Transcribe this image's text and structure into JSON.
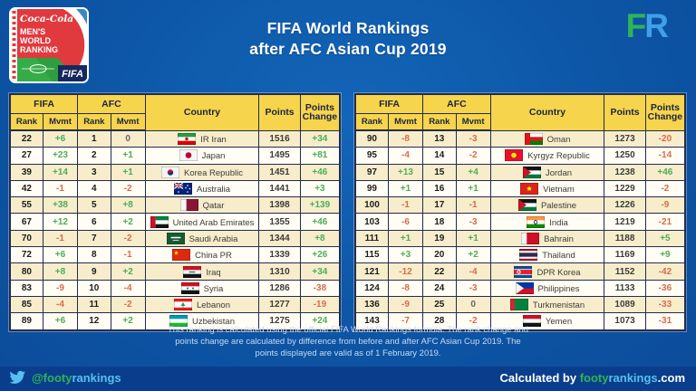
{
  "header": {
    "badge": {
      "sponsor": "Coca-Cola",
      "line1": "MEN'S",
      "line2": "WORLD",
      "line3": "RANKING",
      "fifa": "FIFA"
    },
    "title_line1": "FIFA World Rankings",
    "title_line2": "after AFC Asian Cup 2019",
    "fr_f": "F",
    "fr_r": "R"
  },
  "table_headers": {
    "fifa": "FIFA",
    "afc": "AFC",
    "rank": "Rank",
    "mvmt": "Mvmt",
    "country": "Country",
    "points": "Points",
    "points_change": "Points Change"
  },
  "colors": {
    "background_blue": "#0D55A5",
    "bottom_bar_blue": "#0A3E8C",
    "header_yellow": "#F6D44C",
    "positive_green": "#4CAD5B",
    "negative_red": "#D96A50",
    "zero_gray": "#666666",
    "brand_green": "#2FB457",
    "brand_light_blue": "#55C1F0"
  },
  "tables": [
    {
      "rows": [
        {
          "fifa_rank": "22",
          "fifa_mvmt": "+6",
          "afc_rank": "1",
          "afc_mvmt": "0",
          "country": "IR Iran",
          "points": "1516",
          "change": "+34",
          "flag": {
            "t": "h",
            "s": [
              [
                "#239F40",
                1
              ],
              [
                "#FFFFFF",
                1
              ],
              [
                "#DA0000",
                1
              ]
            ],
            "o": [
              {
                "sh": "disc",
                "c": "#DA0000",
                "x": 10,
                "y": 6.5,
                "r": 1.7
              }
            ]
          }
        },
        {
          "fifa_rank": "27",
          "fifa_mvmt": "+23",
          "afc_rank": "2",
          "afc_mvmt": "+1",
          "country": "Japan",
          "points": "1495",
          "change": "+81",
          "flag": {
            "t": "h",
            "s": [
              [
                "#F5F5F5",
                1
              ]
            ],
            "o": [
              {
                "sh": "disc",
                "c": "#BC002D",
                "x": 10,
                "y": 6.5,
                "r": 3.3
              }
            ]
          }
        },
        {
          "fifa_rank": "39",
          "fifa_mvmt": "+14",
          "afc_rank": "3",
          "afc_mvmt": "+1",
          "country": "Korea Republic",
          "points": "1451",
          "change": "+46",
          "flag": {
            "t": "h",
            "s": [
              [
                "#F5F5F5",
                1
              ]
            ],
            "o": [
              {
                "sh": "taegeuk",
                "x": 10,
                "y": 6.5,
                "r": 3.2
              }
            ]
          }
        },
        {
          "fifa_rank": "42",
          "fifa_mvmt": "-1",
          "afc_rank": "4",
          "afc_mvmt": "-2",
          "country": "Australia",
          "points": "1441",
          "change": "+3",
          "flag": {
            "t": "h",
            "s": [
              [
                "#00247D",
                1
              ]
            ],
            "o": [
              {
                "sh": "jack"
              },
              {
                "sh": "dots",
                "c": "#FFFFFF",
                "r": 0.8,
                "p": [
                  [
                    15,
                    3
                  ],
                  [
                    17.5,
                    6.5
                  ],
                  [
                    15,
                    10
                  ],
                  [
                    13,
                    5.5
                  ],
                  [
                    5,
                    10
                  ]
                ]
              }
            ]
          }
        },
        {
          "fifa_rank": "55",
          "fifa_mvmt": "+38",
          "afc_rank": "5",
          "afc_mvmt": "+8",
          "country": "Qatar",
          "points": "1398",
          "change": "+139",
          "flag": {
            "t": "v",
            "s": [
              [
                "#F5F5F5",
                1
              ],
              [
                "#8A1538",
                2
              ]
            ]
          }
        },
        {
          "fifa_rank": "67",
          "fifa_mvmt": "+12",
          "afc_rank": "6",
          "afc_mvmt": "+2",
          "country": "United Arab Emirates",
          "points": "1355",
          "change": "+46",
          "flag": {
            "t": "bandh",
            "band": [
              "#CE1126",
              0.28
            ],
            "s": [
              [
                "#00843D",
                1
              ],
              [
                "#FFFFFF",
                1
              ],
              [
                "#141414",
                1
              ]
            ]
          }
        },
        {
          "fifa_rank": "70",
          "fifa_mvmt": "-1",
          "afc_rank": "7",
          "afc_mvmt": "-2",
          "country": "Saudi Arabia",
          "points": "1344",
          "change": "+8",
          "flag": {
            "t": "h",
            "s": [
              [
                "#165B33",
                1
              ]
            ],
            "o": [
              {
                "sh": "bar",
                "c": "#FFFFFF",
                "x": 10,
                "y": 5.5,
                "w": 11,
                "h": 1.5
              },
              {
                "sh": "bar",
                "c": "#FFFFFF",
                "x": 10,
                "y": 8.5,
                "w": 7,
                "h": 0.8
              }
            ]
          }
        },
        {
          "fifa_rank": "72",
          "fifa_mvmt": "+6",
          "afc_rank": "8",
          "afc_mvmt": "-1",
          "country": "China PR",
          "points": "1339",
          "change": "+26",
          "flag": {
            "t": "h",
            "s": [
              [
                "#DE2910",
                1
              ]
            ],
            "o": [
              {
                "sh": "star",
                "c": "#FFDE00",
                "x": 4.5,
                "y": 4.5,
                "r": 2.6
              }
            ]
          }
        },
        {
          "fifa_rank": "80",
          "fifa_mvmt": "+8",
          "afc_rank": "9",
          "afc_mvmt": "+2",
          "country": "Iraq",
          "points": "1310",
          "change": "+34",
          "flag": {
            "t": "h",
            "s": [
              [
                "#CE1126",
                1
              ],
              [
                "#FFFFFF",
                1
              ],
              [
                "#141414",
                1
              ]
            ],
            "o": [
              {
                "sh": "bar",
                "c": "#007A3D",
                "x": 10,
                "y": 6.5,
                "w": 7,
                "h": 1.2
              }
            ]
          }
        },
        {
          "fifa_rank": "83",
          "fifa_mvmt": "-9",
          "afc_rank": "10",
          "afc_mvmt": "-4",
          "country": "Syria",
          "points": "1286",
          "change": "-38",
          "flag": {
            "t": "h",
            "s": [
              [
                "#CE1126",
                1
              ],
              [
                "#FFFFFF",
                1
              ],
              [
                "#141414",
                1
              ]
            ],
            "o": [
              {
                "sh": "dots",
                "c": "#007A3D",
                "r": 1,
                "p": [
                  [
                    7,
                    6.5
                  ],
                  [
                    13,
                    6.5
                  ]
                ]
              }
            ]
          }
        },
        {
          "fifa_rank": "85",
          "fifa_mvmt": "-4",
          "afc_rank": "11",
          "afc_mvmt": "-2",
          "country": "Lebanon",
          "points": "1277",
          "change": "-19",
          "flag": {
            "t": "h",
            "s": [
              [
                "#ED1C24",
                1
              ],
              [
                "#FFFFFF",
                2
              ],
              [
                "#ED1C24",
                1
              ]
            ],
            "o": [
              {
                "sh": "tree",
                "c": "#00A651",
                "x": 10,
                "y": 6.5
              }
            ]
          }
        },
        {
          "fifa_rank": "89",
          "fifa_mvmt": "+6",
          "afc_rank": "12",
          "afc_mvmt": "+2",
          "country": "Uzbekistan",
          "points": "1275",
          "change": "+24",
          "flag": {
            "t": "h",
            "s": [
              [
                "#0099B5",
                1
              ],
              [
                "#FFFFFF",
                1
              ],
              [
                "#1EB53A",
                1
              ]
            ]
          }
        }
      ]
    },
    {
      "rows": [
        {
          "fifa_rank": "90",
          "fifa_mvmt": "-8",
          "afc_rank": "13",
          "afc_mvmt": "-3",
          "country": "Oman",
          "points": "1273",
          "change": "-20",
          "flag": {
            "t": "bandh",
            "band": [
              "#DB161B",
              0.3
            ],
            "s": [
              [
                "#FFFFFF",
                1
              ],
              [
                "#DB161B",
                1
              ],
              [
                "#008000",
                1
              ]
            ]
          }
        },
        {
          "fifa_rank": "95",
          "fifa_mvmt": "-4",
          "afc_rank": "14",
          "afc_mvmt": "-2",
          "country": "Kyrgyz Republic",
          "points": "1250",
          "change": "-14",
          "flag": {
            "t": "h",
            "s": [
              [
                "#E8112D",
                1
              ]
            ],
            "o": [
              {
                "sh": "disc",
                "c": "#FFEF00",
                "x": 10,
                "y": 6.5,
                "r": 2.8
              }
            ]
          }
        },
        {
          "fifa_rank": "97",
          "fifa_mvmt": "+13",
          "afc_rank": "15",
          "afc_mvmt": "+4",
          "country": "Jordan",
          "points": "1238",
          "change": "+46",
          "flag": {
            "t": "tri",
            "s": [
              [
                "#141414",
                1
              ],
              [
                "#FFFFFF",
                1
              ],
              [
                "#007A3D",
                1
              ]
            ],
            "tri": "#CE1126"
          }
        },
        {
          "fifa_rank": "99",
          "fifa_mvmt": "+1",
          "afc_rank": "16",
          "afc_mvmt": "+1",
          "country": "Vietnam",
          "points": "1229",
          "change": "-2",
          "flag": {
            "t": "h",
            "s": [
              [
                "#DA251D",
                1
              ]
            ],
            "o": [
              {
                "sh": "star",
                "c": "#FFFF00",
                "x": 10,
                "y": 6.5,
                "r": 3.1
              }
            ]
          }
        },
        {
          "fifa_rank": "100",
          "fifa_mvmt": "-1",
          "afc_rank": "17",
          "afc_mvmt": "-1",
          "country": "Palestine",
          "points": "1226",
          "change": "-9",
          "flag": {
            "t": "tri",
            "s": [
              [
                "#141414",
                1
              ],
              [
                "#FFFFFF",
                1
              ],
              [
                "#007A3D",
                1
              ]
            ],
            "tri": "#CE1126"
          }
        },
        {
          "fifa_rank": "103",
          "fifa_mvmt": "-6",
          "afc_rank": "18",
          "afc_mvmt": "-3",
          "country": "India",
          "points": "1219",
          "change": "-21",
          "flag": {
            "t": "h",
            "s": [
              [
                "#FF9933",
                1
              ],
              [
                "#FFFFFF",
                1
              ],
              [
                "#138808",
                1
              ]
            ],
            "o": [
              {
                "sh": "ring",
                "c": "#000080",
                "x": 10,
                "y": 6.5,
                "r": 1.8
              }
            ]
          }
        },
        {
          "fifa_rank": "111",
          "fifa_mvmt": "+1",
          "afc_rank": "19",
          "afc_mvmt": "+1",
          "country": "Bahrain",
          "points": "1188",
          "change": "+5",
          "flag": {
            "t": "v",
            "s": [
              [
                "#F5F5F5",
                1
              ],
              [
                "#CE1126",
                2.2
              ]
            ]
          }
        },
        {
          "fifa_rank": "115",
          "fifa_mvmt": "+3",
          "afc_rank": "20",
          "afc_mvmt": "+2",
          "country": "Thailand",
          "points": "1169",
          "change": "+9",
          "flag": {
            "t": "h",
            "s": [
              [
                "#A51931",
                1
              ],
              [
                "#F4F5F8",
                1
              ],
              [
                "#2D2A4A",
                2
              ],
              [
                "#F4F5F8",
                1
              ],
              [
                "#A51931",
                1
              ]
            ]
          }
        },
        {
          "fifa_rank": "121",
          "fifa_mvmt": "-12",
          "afc_rank": "22",
          "afc_mvmt": "-4",
          "country": "DPR Korea",
          "points": "1152",
          "change": "-42",
          "flag": {
            "t": "h",
            "s": [
              [
                "#024FA2",
                2
              ],
              [
                "#FFFFFF",
                0.5
              ],
              [
                "#ED1C27",
                3
              ],
              [
                "#FFFFFF",
                0.5
              ],
              [
                "#024FA2",
                2
              ]
            ],
            "o": [
              {
                "sh": "disc",
                "c": "#FFFFFF",
                "x": 5.5,
                "y": 6.5,
                "r": 2.2
              },
              {
                "sh": "star",
                "c": "#ED1C27",
                "x": 5.5,
                "y": 6.5,
                "r": 1.8
              }
            ]
          }
        },
        {
          "fifa_rank": "124",
          "fifa_mvmt": "-8",
          "afc_rank": "24",
          "afc_mvmt": "-3",
          "country": "Philippines",
          "points": "1133",
          "change": "-36",
          "flag": {
            "t": "tri",
            "s": [
              [
                "#0038A8",
                1
              ],
              [
                "#CE1126",
                1
              ]
            ],
            "tri": "#F5F5F5"
          }
        },
        {
          "fifa_rank": "136",
          "fifa_mvmt": "-9",
          "afc_rank": "25",
          "afc_mvmt": "0",
          "country": "Turkmenistan",
          "points": "1089",
          "change": "-33",
          "flag": {
            "t": "bandh",
            "band": [
              "#D22630",
              0.25
            ],
            "s": [
              [
                "#00843D",
                1
              ]
            ]
          }
        },
        {
          "fifa_rank": "143",
          "fifa_mvmt": "-7",
          "afc_rank": "28",
          "afc_mvmt": "-2",
          "country": "Yemen",
          "points": "1073",
          "change": "-31",
          "flag": {
            "t": "h",
            "s": [
              [
                "#CE1126",
                1
              ],
              [
                "#FFFFFF",
                1
              ],
              [
                "#141414",
                1
              ]
            ]
          }
        }
      ]
    }
  ],
  "footer_lines": [
    "This ranking is calculated using the official FIFA World Rankings formula. The rank change and",
    "points change are calculated by difference from before and after AFC Asian Cup 2019. The",
    "points displayed are valid as of 1 February 2019."
  ],
  "social": {
    "handle_green": "@footy",
    "handle_blue": "rankings",
    "calc_prefix": "Calculated by ",
    "calc_green": "footy",
    "calc_blue": "rankings",
    "calc_suffix": ".com"
  }
}
